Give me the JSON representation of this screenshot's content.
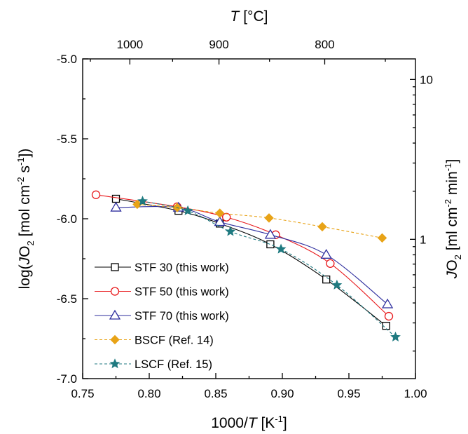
{
  "chart_data": {
    "type": "line",
    "xlabel": "1000/T [K⁻¹]",
    "ylabel": "log(J_O₂ [mol cm⁻² s⁻¹])",
    "x_top_label": "T [°C]",
    "y_right_label": "J_O₂ [ml cm⁻² min⁻¹]",
    "xlim": [
      0.75,
      1.0
    ],
    "ylim": [
      -7.0,
      -5.0
    ],
    "x_ticks": [
      0.75,
      0.8,
      0.85,
      0.9,
      0.95,
      1.0
    ],
    "x_tick_labels": [
      "0.75",
      "0.80",
      "0.85",
      "0.90",
      "0.95",
      "1.00"
    ],
    "y_ticks": [
      -7.0,
      -6.5,
      -6.0,
      -5.5,
      -5.0
    ],
    "y_tick_labels": [
      "-7.0",
      "-6.5",
      "-6.0",
      "-5.5",
      "-5.0"
    ],
    "top_ticks": [
      1000,
      900,
      800
    ],
    "top_tick_labels": [
      "1000",
      "900",
      "800"
    ],
    "right_ticks": [
      1,
      10
    ],
    "right_tick_labels": [
      "1",
      "10"
    ],
    "legend_position": "bottom-left",
    "series": [
      {
        "name": "STF 30 (this work)",
        "color": "#000000",
        "marker": "square-open",
        "line": "solid",
        "x": [
          0.775,
          0.822,
          0.853,
          0.891,
          0.933,
          0.978
        ],
        "y": [
          -5.875,
          -5.95,
          -6.03,
          -6.16,
          -6.38,
          -6.67
        ]
      },
      {
        "name": "STF 50 (this work)",
        "color": "#e8181b",
        "marker": "circle-open",
        "line": "solid",
        "x": [
          0.76,
          0.821,
          0.858,
          0.895,
          0.936,
          0.98
        ],
        "y": [
          -5.85,
          -5.925,
          -5.99,
          -6.1,
          -6.28,
          -6.61
        ]
      },
      {
        "name": "STF 70 (this work)",
        "color": "#2e2e9e",
        "marker": "triangle-open",
        "line": "solid",
        "x": [
          0.775,
          0.822,
          0.853,
          0.891,
          0.933,
          0.979
        ],
        "y": [
          -5.93,
          -5.93,
          -6.02,
          -6.1,
          -6.225,
          -6.535
        ]
      },
      {
        "name": "BSCF (Ref. 14)",
        "color": "#e8a317",
        "marker": "diamond-filled",
        "line": "dashed",
        "x": [
          0.791,
          0.821,
          0.853,
          0.89,
          0.93,
          0.975
        ],
        "y": [
          -5.91,
          -5.93,
          -5.965,
          -5.995,
          -6.05,
          -6.12
        ]
      },
      {
        "name": "LSCF (Ref. 15)",
        "color": "#1f7a80",
        "marker": "star-filled",
        "line": "dashed",
        "x": [
          0.795,
          0.829,
          0.861,
          0.899,
          0.941,
          0.985
        ],
        "y": [
          -5.89,
          -5.95,
          -6.08,
          -6.19,
          -6.415,
          -6.74
        ]
      }
    ]
  }
}
